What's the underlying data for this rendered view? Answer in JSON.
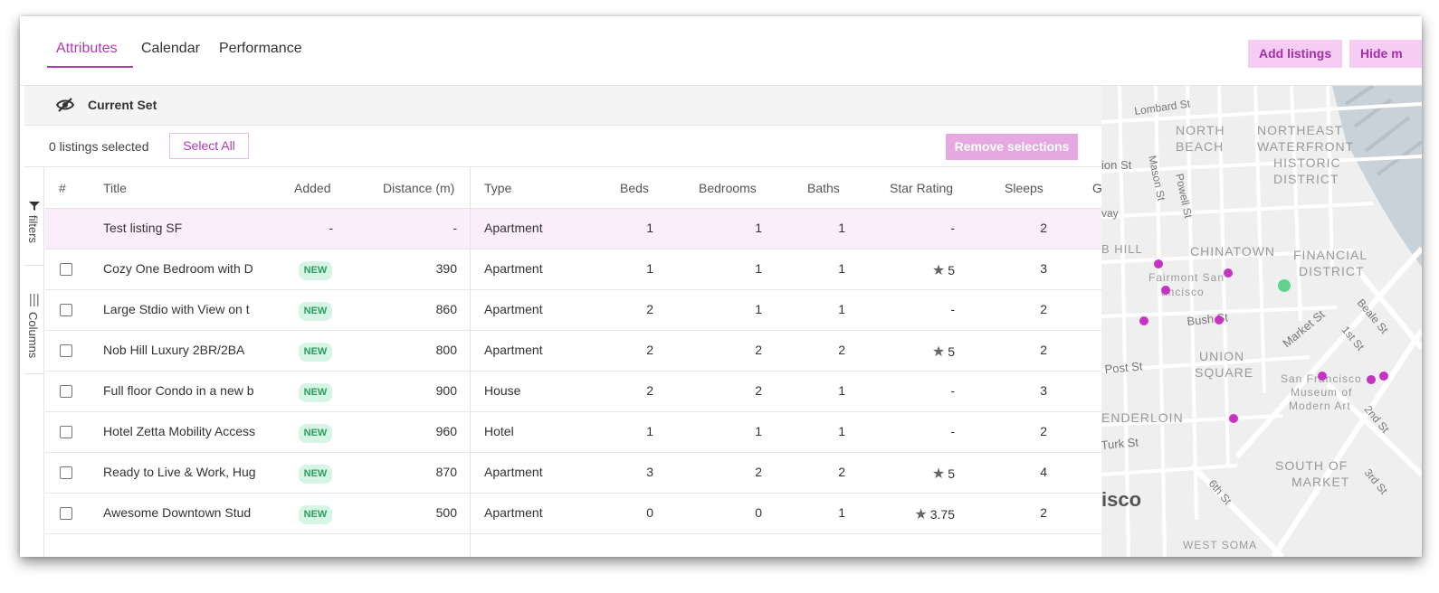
{
  "tabs": [
    {
      "label": "Attributes",
      "active": true
    },
    {
      "label": "Calendar",
      "active": false
    },
    {
      "label": "Performance",
      "active": false
    }
  ],
  "actions": {
    "add_listings": "Add listings",
    "hide_map": "Hide m"
  },
  "current_set": {
    "label": "Current Set",
    "icon": "eye-slash-icon"
  },
  "selection": {
    "count_text": "0 listings selected",
    "select_all": "Select All",
    "remove": "Remove selections"
  },
  "side_tabs": {
    "filters": "filters",
    "columns": "Columns"
  },
  "table": {
    "columns": [
      "#",
      "Title",
      "Added",
      "Distance (m)",
      "Type",
      "Beds",
      "Bedrooms",
      "Baths",
      "Star Rating",
      "Sleeps",
      "G"
    ],
    "rows": [
      {
        "title": "Test listing SF",
        "added": "-",
        "distance": "-",
        "type": "Apartment",
        "beds": "1",
        "bedrooms": "1",
        "baths": "1",
        "rating": "-",
        "rated": false,
        "sleeps": "2",
        "checkbox": false,
        "is_new": false
      },
      {
        "title": "Cozy One Bedroom with D",
        "added": "NEW",
        "distance": "390",
        "type": "Apartment",
        "beds": "1",
        "bedrooms": "1",
        "baths": "1",
        "rating": "5",
        "rated": true,
        "sleeps": "3",
        "checkbox": true,
        "is_new": true
      },
      {
        "title": "Large Stdio with View on t",
        "added": "NEW",
        "distance": "860",
        "type": "Apartment",
        "beds": "2",
        "bedrooms": "1",
        "baths": "1",
        "rating": "-",
        "rated": false,
        "sleeps": "2",
        "checkbox": true,
        "is_new": true
      },
      {
        "title": "Nob Hill Luxury 2BR/2BA",
        "added": "NEW",
        "distance": "800",
        "type": "Apartment",
        "beds": "2",
        "bedrooms": "2",
        "baths": "2",
        "rating": "5",
        "rated": true,
        "sleeps": "2",
        "checkbox": true,
        "is_new": true
      },
      {
        "title": "Full floor Condo in a new b",
        "added": "NEW",
        "distance": "900",
        "type": "House",
        "beds": "2",
        "bedrooms": "2",
        "baths": "1",
        "rating": "-",
        "rated": false,
        "sleeps": "3",
        "checkbox": true,
        "is_new": true
      },
      {
        "title": "Hotel Zetta Mobility Access",
        "added": "NEW",
        "distance": "960",
        "type": "Hotel",
        "beds": "1",
        "bedrooms": "1",
        "baths": "1",
        "rating": "-",
        "rated": false,
        "sleeps": "2",
        "checkbox": true,
        "is_new": true
      },
      {
        "title": "Ready to Live & Work, Hug",
        "added": "NEW",
        "distance": "870",
        "type": "Apartment",
        "beds": "3",
        "bedrooms": "2",
        "baths": "2",
        "rating": "5",
        "rated": true,
        "sleeps": "4",
        "checkbox": true,
        "is_new": true
      },
      {
        "title": "Awesome Downtown Stud",
        "added": "NEW",
        "distance": "500",
        "type": "Apartment",
        "beds": "0",
        "bedrooms": "0",
        "baths": "1",
        "rating": "3.75",
        "rated": true,
        "sleeps": "2",
        "checkbox": true,
        "is_new": true
      }
    ]
  },
  "map": {
    "labels": [
      {
        "text": "Lombard St"
      },
      {
        "text": "NORTH"
      },
      {
        "text": "BEACH"
      },
      {
        "text": "NORTHEAST"
      },
      {
        "text": "WATERFRONT"
      },
      {
        "text": "HISTORIC"
      },
      {
        "text": "DISTRICT"
      },
      {
        "text": "ion St"
      },
      {
        "text": "Mason St"
      },
      {
        "text": "Powell St"
      },
      {
        "text": "vay"
      },
      {
        "text": "B HILL"
      },
      {
        "text": "CHINATOWN"
      },
      {
        "text": "FINANCIAL"
      },
      {
        "text": "DISTRICT"
      },
      {
        "text": "Fairmont San"
      },
      {
        "text": "ancisco"
      },
      {
        "text": "Bush St"
      },
      {
        "text": "Market St"
      },
      {
        "text": "1st St"
      },
      {
        "text": "Beale St"
      },
      {
        "text": "Post St"
      },
      {
        "text": "UNION"
      },
      {
        "text": "SQUARE"
      },
      {
        "text": "San Francisco"
      },
      {
        "text": "Museum of"
      },
      {
        "text": "Modern Art"
      },
      {
        "text": "ENDERLOIN"
      },
      {
        "text": "2nd St"
      },
      {
        "text": "Turk St"
      },
      {
        "text": "SOUTH OF"
      },
      {
        "text": "MARKET"
      },
      {
        "text": "3rd St"
      },
      {
        "text": "6th St"
      },
      {
        "text": "isco"
      },
      {
        "text": "WEST SOMA"
      }
    ],
    "marker_color": "#c832c4",
    "current_color": "#5fd38d"
  },
  "colors": {
    "accent": "#b23ab6",
    "accent_light": "#f5cdf2",
    "new_badge_bg": "#d6f5e4",
    "new_badge_text": "#2e9c62"
  }
}
